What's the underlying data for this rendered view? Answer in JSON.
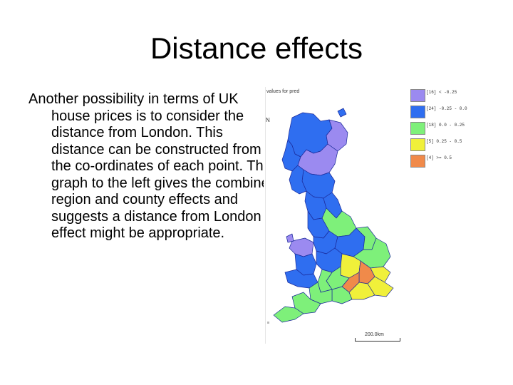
{
  "slide": {
    "title": "Distance effects",
    "body": "Another possibility in terms of UK house prices is to consider the distance from London. This distance can be constructed from the co-ordinates of each point. The graph to the left gives the combined region and county effects and suggests a distance from London effect might be appropriate."
  },
  "map": {
    "title": "values for pred",
    "north_label": "N",
    "scale_label": "200.0km",
    "legend": [
      {
        "label": "[16] < -0.25",
        "color": "#9b8af0"
      },
      {
        "label": "[24] -0.25 -  0.0",
        "color": "#2f6ef0"
      },
      {
        "label": "[18]  0.0 -  0.25",
        "color": "#7ef07a"
      },
      {
        "label": "[5]  0.25 -  0.5",
        "color": "#f0f03a"
      },
      {
        "label": "[4] >= 0.5",
        "color": "#f08a4a"
      }
    ],
    "outline_color": "#1b2a9a"
  }
}
